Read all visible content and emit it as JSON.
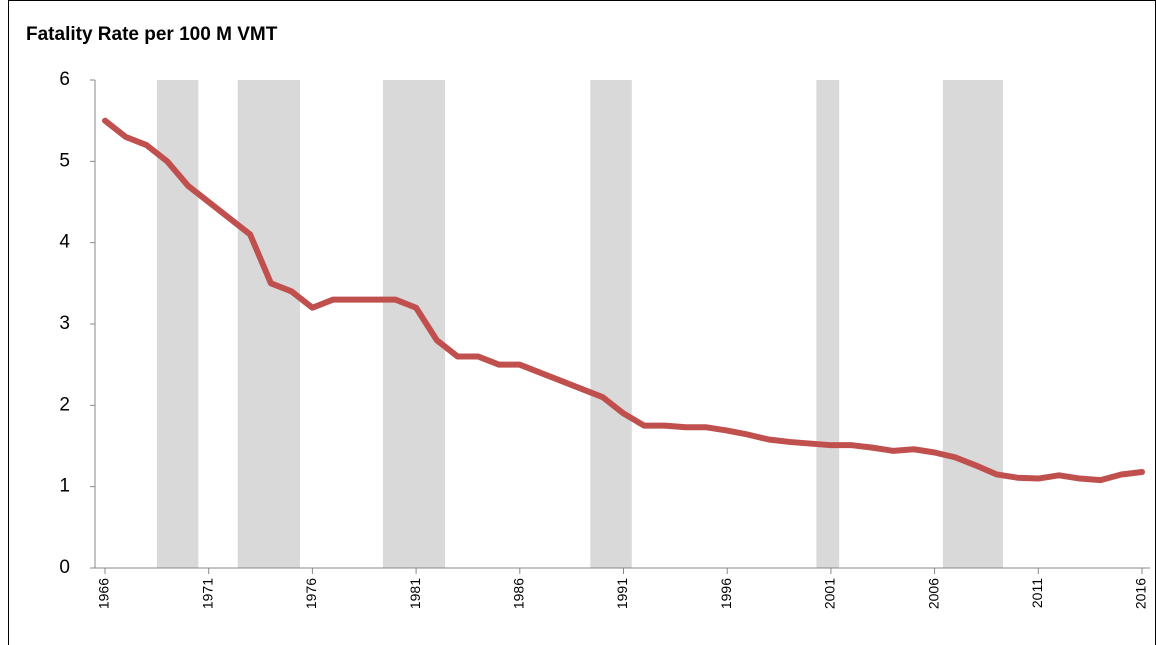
{
  "chart_data": {
    "type": "line",
    "title": "Fatality Rate per 100 M VMT",
    "x": [
      1966,
      1967,
      1968,
      1969,
      1970,
      1971,
      1972,
      1973,
      1974,
      1975,
      1976,
      1977,
      1978,
      1979,
      1980,
      1981,
      1982,
      1983,
      1984,
      1985,
      1986,
      1987,
      1988,
      1989,
      1990,
      1991,
      1992,
      1993,
      1994,
      1995,
      1996,
      1997,
      1998,
      1999,
      2000,
      2001,
      2002,
      2003,
      2004,
      2005,
      2006,
      2007,
      2008,
      2009,
      2010,
      2011,
      2012,
      2013,
      2014,
      2015,
      2016
    ],
    "series": [
      {
        "color": "#c0504d",
        "values": [
          5.5,
          5.3,
          5.2,
          5.0,
          4.7,
          4.5,
          4.3,
          4.1,
          3.5,
          3.4,
          3.2,
          3.3,
          3.3,
          3.3,
          3.3,
          3.2,
          2.8,
          2.6,
          2.6,
          2.5,
          2.5,
          2.4,
          2.3,
          2.2,
          2.1,
          1.9,
          1.75,
          1.75,
          1.73,
          1.73,
          1.69,
          1.64,
          1.58,
          1.55,
          1.53,
          1.51,
          1.51,
          1.48,
          1.44,
          1.46,
          1.42,
          1.36,
          1.26,
          1.15,
          1.11,
          1.1,
          1.14,
          1.1,
          1.08,
          1.15,
          1.18
        ]
      }
    ],
    "bands": {
      "color": "#d9d9d9",
      "ranges": [
        [
          1968.5,
          1970.5
        ],
        [
          1972.4,
          1975.4
        ],
        [
          1979.4,
          1982.4
        ],
        [
          1989.4,
          1991.4
        ],
        [
          2000.3,
          2001.4
        ],
        [
          2006.4,
          2009.3
        ]
      ]
    },
    "xlim": [
      1966,
      2016
    ],
    "xticks": [
      1966,
      1971,
      1976,
      1981,
      1986,
      1991,
      1996,
      2001,
      2006,
      2011,
      2016
    ],
    "ylim": [
      0,
      6
    ],
    "yticks": [
      0,
      1,
      2,
      3,
      4,
      5,
      6
    ]
  }
}
